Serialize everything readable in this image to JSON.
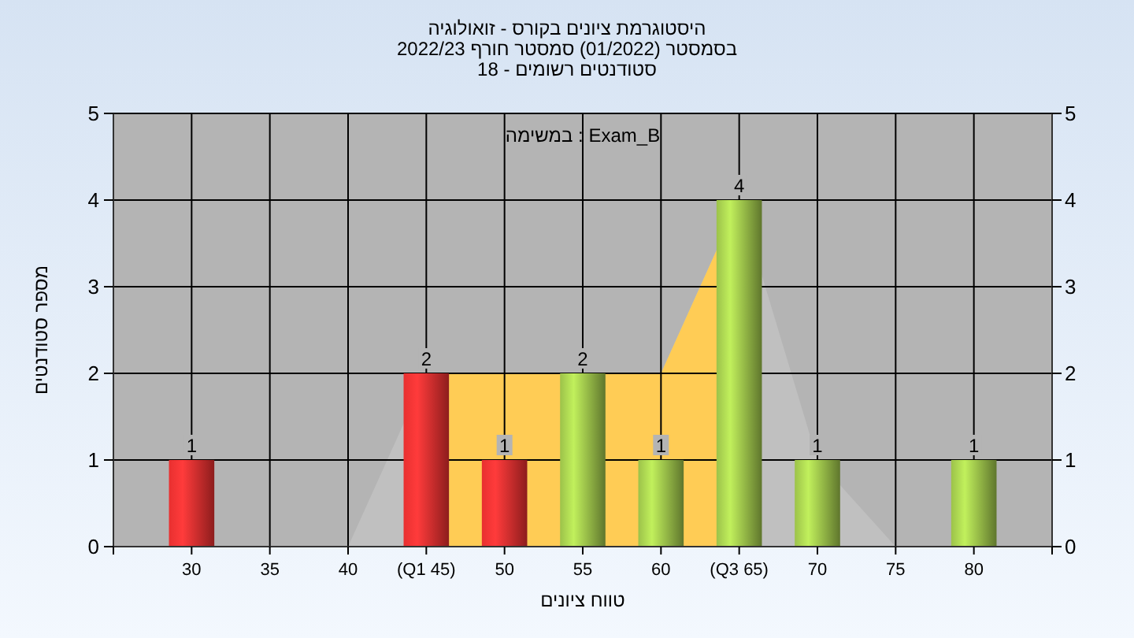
{
  "chart_data": {
    "type": "bar",
    "title": "היסטוגרמת ציונים בקורס - זואולוגיה",
    "subtitle": "בסמסטר  (01/2022)  סמסטר חורף 2022/23\nסטודנטים רשומים - 18",
    "xlabel": "טווח ציונים",
    "ylabel": "מספר סטודנטים",
    "annotations": [
      "במשימה : Exam_B"
    ],
    "categories": [
      "30",
      "35",
      "40",
      "(Q1 45)",
      "50",
      "55",
      "60",
      "(Q3 65)",
      "70",
      "75",
      "80"
    ],
    "series": [
      {
        "type": "area",
        "color": "#c0c0c0",
        "values": [
          null,
          null,
          0,
          2,
          2,
          null,
          2,
          4,
          1,
          0,
          0
        ]
      },
      {
        "type": "area",
        "color": "#ffcc55",
        "values": [
          null,
          null,
          null,
          2,
          2,
          null,
          2,
          4,
          null,
          null,
          null
        ]
      },
      {
        "values": [
          1,
          0,
          0,
          2,
          1,
          2,
          1,
          4,
          1,
          0,
          1
        ],
        "value_labels": [
          "1",
          null,
          null,
          "2",
          "1",
          "2",
          "1",
          "4",
          "1",
          null,
          "1"
        ],
        "colors": [
          "#e83030",
          "#e83030",
          "#e83030",
          "#e83030",
          "#e83030",
          "#9cc24a",
          "#9cc24a",
          "#9cc24a",
          "#9cc24a",
          "#9cc24a",
          "#9cc24a"
        ]
      }
    ],
    "ylim": [
      0,
      5
    ],
    "yticks": [
      0,
      1,
      2,
      3,
      4,
      5
    ],
    "y2lim": [
      0,
      5
    ],
    "y2ticks": [
      0,
      1,
      2,
      3,
      4,
      5
    ],
    "grid": true
  }
}
